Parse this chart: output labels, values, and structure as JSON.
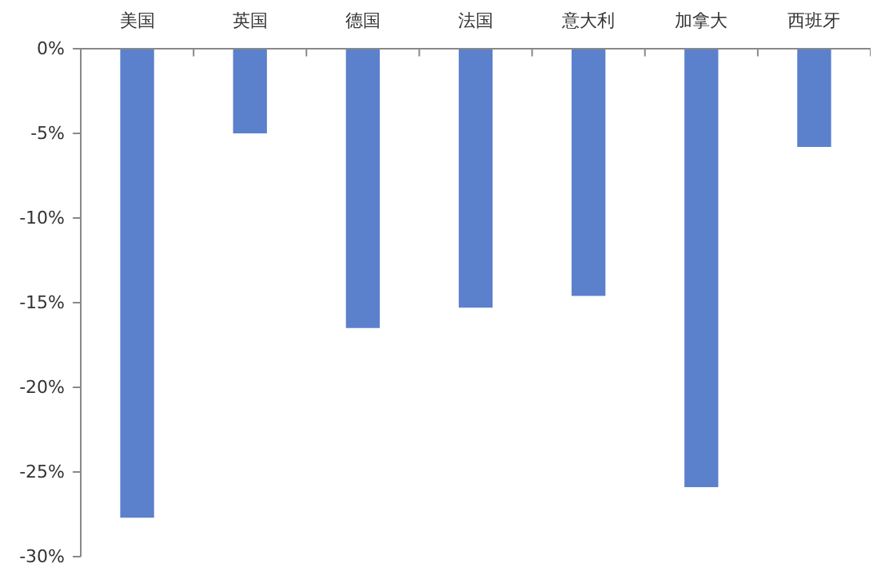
{
  "chart_data": {
    "type": "bar",
    "categories": [
      "美国",
      "英国",
      "德国",
      "法国",
      "意大利",
      "加拿大",
      "西班牙"
    ],
    "values": [
      -27.7,
      -5.0,
      -16.5,
      -15.3,
      -14.6,
      -25.9,
      -5.8
    ],
    "color": "#5b80cc",
    "ylim": [
      -30,
      0
    ],
    "yticks": [
      {
        "value": 0,
        "label": "0%"
      },
      {
        "value": -5,
        "label": "-5%"
      },
      {
        "value": -10,
        "label": "-10%"
      },
      {
        "value": -15,
        "label": "-15%"
      },
      {
        "value": -20,
        "label": "-20%"
      },
      {
        "value": -25,
        "label": "-25%"
      },
      {
        "value": -30,
        "label": "-30%"
      }
    ],
    "grid": false
  }
}
